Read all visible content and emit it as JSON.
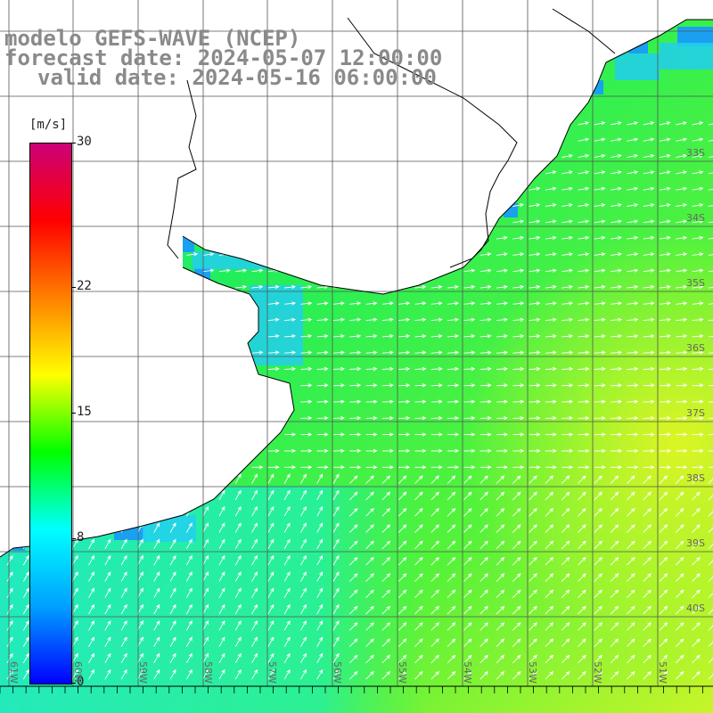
{
  "title": {
    "line1": "modelo GEFS-WAVE (NCEP)",
    "line2": "forecast date: 2024-05-07 12:00:00",
    "line3": "valid date: 2024-05-16 06:00:00"
  },
  "colorbar": {
    "units": "[m/s]",
    "ticks": [
      "30",
      "22",
      "15",
      "8",
      "0"
    ],
    "tick_values": [
      30,
      22,
      15,
      8,
      0
    ],
    "colors": [
      "#0000ff",
      "#00a0ff",
      "#00ffff",
      "#00ff00",
      "#ffff00",
      "#ff8000",
      "#ff0000",
      "#cc0077"
    ]
  },
  "latitude_labels": [
    "33S",
    "34S",
    "35S",
    "36S",
    "37S",
    "38S",
    "39S",
    "40S"
  ],
  "longitude_labels": [
    "61W",
    "60W",
    "59W",
    "58W",
    "57W",
    "56W",
    "55W",
    "54W",
    "53W",
    "52W",
    "51W"
  ],
  "colors": {
    "land": "#ffffff",
    "coastline": "#000000",
    "grid": "#555555",
    "arrow": "#ffffff",
    "title": "#8a8a8a"
  }
}
